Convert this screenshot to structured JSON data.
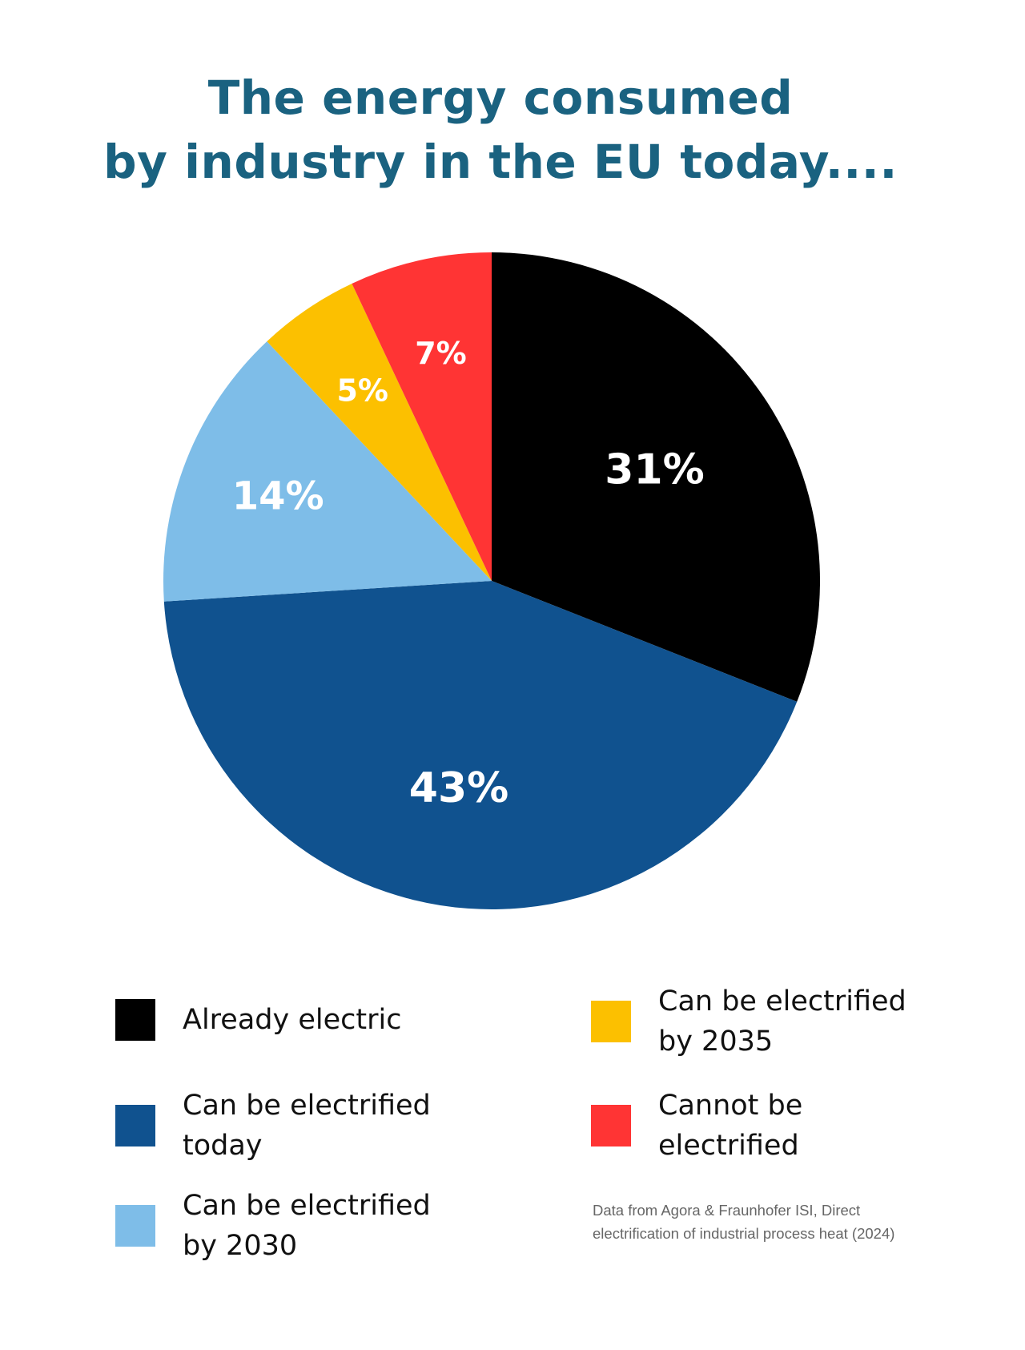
{
  "chart_data": {
    "type": "pie",
    "title": "The energy consumed by industry in the EU today....",
    "title_lines": [
      "The energy consumed",
      "by industry in the EU today...."
    ],
    "slices": [
      {
        "label": "Already electric",
        "value": 31,
        "display": "31%",
        "color": "#000000"
      },
      {
        "label": "Can be electrified today",
        "value": 43,
        "display": "43%",
        "color": "#10528f"
      },
      {
        "label": "Can be electrified by 2030",
        "value": 14,
        "display": "14%",
        "color": "#7ebde8"
      },
      {
        "label": "Can be electrified by 2035",
        "value": 5,
        "display": "5%",
        "color": "#fcc000"
      },
      {
        "label": "Cannot be electrified",
        "value": 7,
        "display": "7%",
        "color": "#ff3434"
      }
    ],
    "legend_placement": "bottom",
    "source": "Data from Agora & Fraunhofer ISI, Direct electrification of industrial process heat (2024)"
  },
  "legend": [
    {
      "text": "Already electric",
      "color": "#000000"
    },
    {
      "text": "Can be electrified\ntoday",
      "color": "#10528f"
    },
    {
      "text": "Can be electrified\nby 2030",
      "color": "#7ebde8"
    },
    {
      "text": "Can be electrified\nby 2035",
      "color": "#fcc000"
    },
    {
      "text": "Cannot be\nelectrified",
      "color": "#ff3434"
    }
  ],
  "source_line1": "Data from Agora & Fraunhofer ISI, Direct",
  "source_line2": "electrification of industrial process heat (2024)"
}
